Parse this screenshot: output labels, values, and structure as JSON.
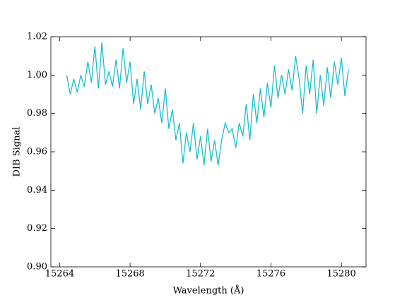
{
  "chart_data": {
    "type": "line",
    "xlabel": "Wavelength (Å)",
    "ylabel": "DIB Signal",
    "x": [
      15264.4,
      15264.6,
      15264.8,
      15265.0,
      15265.2,
      15265.4,
      15265.6,
      15265.8,
      15266.0,
      15266.2,
      15266.4,
      15266.6,
      15266.8,
      15267.0,
      15267.2,
      15267.4,
      15267.6,
      15267.8,
      15268.0,
      15268.2,
      15268.4,
      15268.6,
      15268.8,
      15269.0,
      15269.2,
      15269.4,
      15269.6,
      15269.8,
      15270.0,
      15270.2,
      15270.4,
      15270.6,
      15270.8,
      15271.0,
      15271.2,
      15271.4,
      15271.6,
      15271.8,
      15272.0,
      15272.2,
      15272.4,
      15272.6,
      15272.8,
      15273.0,
      15273.2,
      15273.4,
      15273.6,
      15273.8,
      15274.0,
      15274.2,
      15274.4,
      15274.6,
      15274.8,
      15275.0,
      15275.2,
      15275.4,
      15275.6,
      15275.8,
      15276.0,
      15276.2,
      15276.4,
      15276.6,
      15276.8,
      15277.0,
      15277.2,
      15277.4,
      15277.6,
      15277.8,
      15278.0,
      15278.2,
      15278.4,
      15278.6,
      15278.8,
      15279.0,
      15279.2,
      15279.4,
      15279.6,
      15279.8,
      15280.0,
      15280.2,
      15280.4
    ],
    "series": [
      {
        "name": "DIB Signal",
        "color": "#17becf",
        "values": [
          1.0,
          0.99,
          0.998,
          0.991,
          1.0,
          0.994,
          1.007,
          0.996,
          1.015,
          0.993,
          1.017,
          0.995,
          1.002,
          0.994,
          1.008,
          0.993,
          1.014,
          0.996,
          1.007,
          0.985,
          0.998,
          0.982,
          1.002,
          0.985,
          0.995,
          0.98,
          0.988,
          0.975,
          0.993,
          0.972,
          0.982,
          0.966,
          0.975,
          0.954,
          0.97,
          0.96,
          0.975,
          0.956,
          0.968,
          0.953,
          0.972,
          0.955,
          0.966,
          0.953,
          0.966,
          0.975,
          0.97,
          0.972,
          0.962,
          0.975,
          0.968,
          0.985,
          0.966,
          0.99,
          0.975,
          0.993,
          0.978,
          0.996,
          0.983,
          1.005,
          0.988,
          1.0,
          0.99,
          1.003,
          0.992,
          1.01,
          0.998,
          0.98,
          1.005,
          0.99,
          1.008,
          0.98,
          1.0,
          0.984,
          1.004,
          0.988,
          1.007,
          0.995,
          1.009,
          0.989,
          1.003
        ]
      }
    ],
    "xlim": [
      15263.5,
      15281.4
    ],
    "ylim": [
      0.9,
      1.02
    ],
    "xticks": [
      15264,
      15268,
      15272,
      15276,
      15280
    ],
    "yticks": [
      {
        "value": 0.9,
        "label": "0.90"
      },
      0.92,
      0.94,
      0.96,
      0.98,
      {
        "value": 1.0,
        "label": "1.00"
      },
      1.02
    ],
    "grid": false
  }
}
